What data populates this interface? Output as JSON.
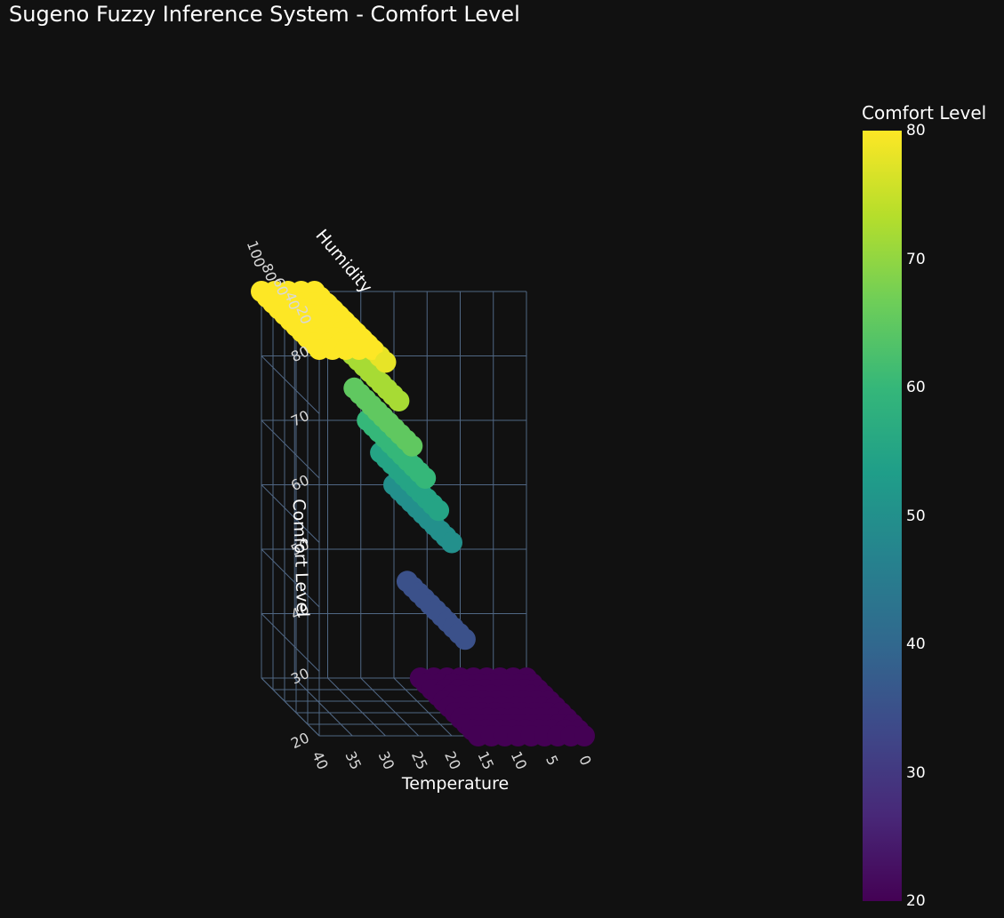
{
  "title": "Sugeno Fuzzy Inference System - Comfort Level",
  "chart_data": {
    "type": "scatter",
    "subtype": "3d-scatter",
    "title": "Sugeno Fuzzy Inference System - Comfort Level",
    "axes": {
      "x": {
        "label": "Temperature",
        "range": [
          0,
          40
        ],
        "ticks": [
          "0",
          "5",
          "10",
          "15",
          "20",
          "25",
          "30",
          "35",
          "40"
        ]
      },
      "y": {
        "label": "Humidity",
        "range": [
          0,
          100
        ],
        "ticks": [
          "20",
          "40",
          "60",
          "80",
          "100"
        ]
      },
      "z": {
        "label": "Comfort Level",
        "range": [
          20,
          80
        ],
        "ticks": [
          "20",
          "30",
          "40",
          "50",
          "60",
          "70",
          "80"
        ]
      }
    },
    "colorbar": {
      "title": "Comfort Level",
      "colorscale": "Viridis",
      "range": [
        20,
        80
      ],
      "ticks": [
        "20",
        "30",
        "40",
        "50",
        "60",
        "70",
        "80"
      ]
    },
    "grid": true,
    "colors": {
      "background": "#111111",
      "grid": "#506784",
      "text": "#ffffff"
    },
    "points_summary": {
      "temperature_steps": [
        0,
        2,
        4,
        6,
        8,
        10,
        12,
        14,
        16,
        18,
        20,
        22,
        24,
        26,
        28,
        30,
        32,
        34,
        36,
        38,
        40
      ],
      "humidity_steps": [
        0,
        10,
        20,
        30,
        40,
        50,
        60,
        70,
        80,
        90,
        100
      ],
      "comfort_by_temperature": [
        [
          0,
          20
        ],
        [
          2,
          20
        ],
        [
          4,
          20
        ],
        [
          6,
          20
        ],
        [
          8,
          20
        ],
        [
          10,
          20
        ],
        [
          12,
          20
        ],
        [
          14,
          20
        ],
        [
          16,
          20
        ],
        [
          17,
          30
        ],
        [
          18,
          35
        ],
        [
          19,
          45
        ],
        [
          20,
          50
        ],
        [
          22,
          55
        ],
        [
          24,
          60
        ],
        [
          26,
          65
        ],
        [
          28,
          72
        ],
        [
          30,
          78
        ],
        [
          32,
          80
        ],
        [
          34,
          80
        ],
        [
          36,
          80
        ],
        [
          38,
          80
        ],
        [
          40,
          80
        ]
      ]
    }
  }
}
